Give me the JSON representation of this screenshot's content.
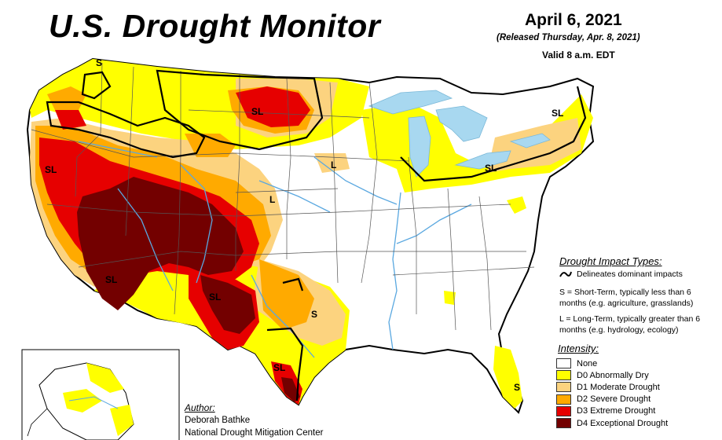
{
  "title": "U.S. Drought Monitor",
  "date": "April 6, 2021",
  "released": "(Released Thursday, Apr. 8, 2021)",
  "valid": "Valid 8 a.m. EDT",
  "impact_types": {
    "heading": "Drought Impact Types:",
    "delineates": "Delineates dominant impacts",
    "short_term": "S = Short-Term, typically less than 6 months (e.g. agriculture, grasslands)",
    "long_term": "L = Long-Term, typically greater than 6 months (e.g. hydrology, ecology)"
  },
  "intensity": {
    "heading": "Intensity:",
    "levels": [
      {
        "label": "None",
        "color": "#ffffff"
      },
      {
        "label": "D0 Abnormally Dry",
        "color": "#ffff00"
      },
      {
        "label": "D1 Moderate Drought",
        "color": "#fcd37f"
      },
      {
        "label": "D2 Severe Drought",
        "color": "#ffaa00"
      },
      {
        "label": "D3 Extreme Drought",
        "color": "#e60000"
      },
      {
        "label": "D4 Exceptional Drought",
        "color": "#730000"
      }
    ]
  },
  "author": {
    "heading": "Author:",
    "name": "Deborah Bathke",
    "org": "National Drought Mitigation Center"
  },
  "map_labels": [
    "S",
    "SL",
    "SL",
    "L",
    "L",
    "SL",
    "SL",
    "SL",
    "S",
    "SL",
    "S",
    "SL"
  ],
  "colors": {
    "water": "#a8d8f0",
    "river": "#5aa8e0",
    "border": "#000000"
  }
}
